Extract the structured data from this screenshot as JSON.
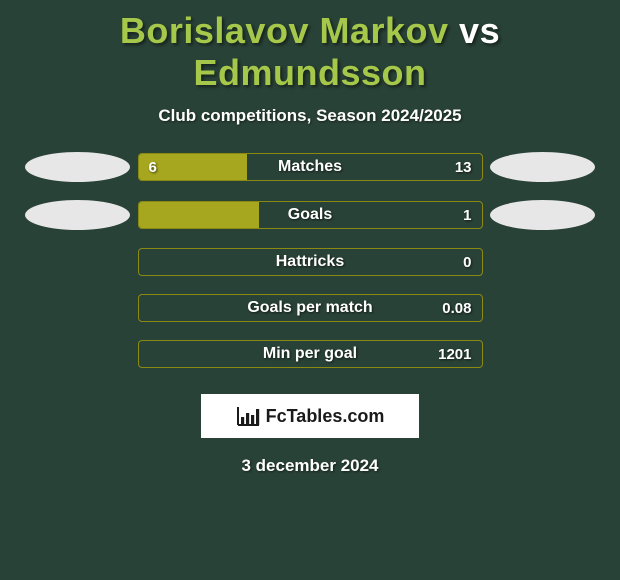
{
  "title": {
    "player1": "Borislavov Markov",
    "vs": "vs",
    "player2": "Edmundsson",
    "color1": "#a6c84a",
    "color_vs": "#ffffff",
    "color2": "#a6c84a"
  },
  "subtitle": "Club competitions, Season 2024/2025",
  "ellipse_color": "#e7e7e7",
  "bar": {
    "fill_color": "#a6a61f",
    "border_color": "#8a8a12",
    "bg_color": "#294237"
  },
  "rows": [
    {
      "label": "Matches",
      "left": "6",
      "right": "13",
      "left_pct": 31.6,
      "show_ellipses": true
    },
    {
      "label": "Goals",
      "left": "",
      "right": "1",
      "left_pct": 35.0,
      "show_ellipses": true
    },
    {
      "label": "Hattricks",
      "left": "",
      "right": "0",
      "left_pct": 0.0,
      "show_ellipses": false
    },
    {
      "label": "Goals per match",
      "left": "",
      "right": "0.08",
      "left_pct": 0.0,
      "show_ellipses": false
    },
    {
      "label": "Min per goal",
      "left": "",
      "right": "1201",
      "left_pct": 0.0,
      "show_ellipses": false
    }
  ],
  "logo_text": "FcTables.com",
  "date": "3 december 2024",
  "background_color": "#294237"
}
